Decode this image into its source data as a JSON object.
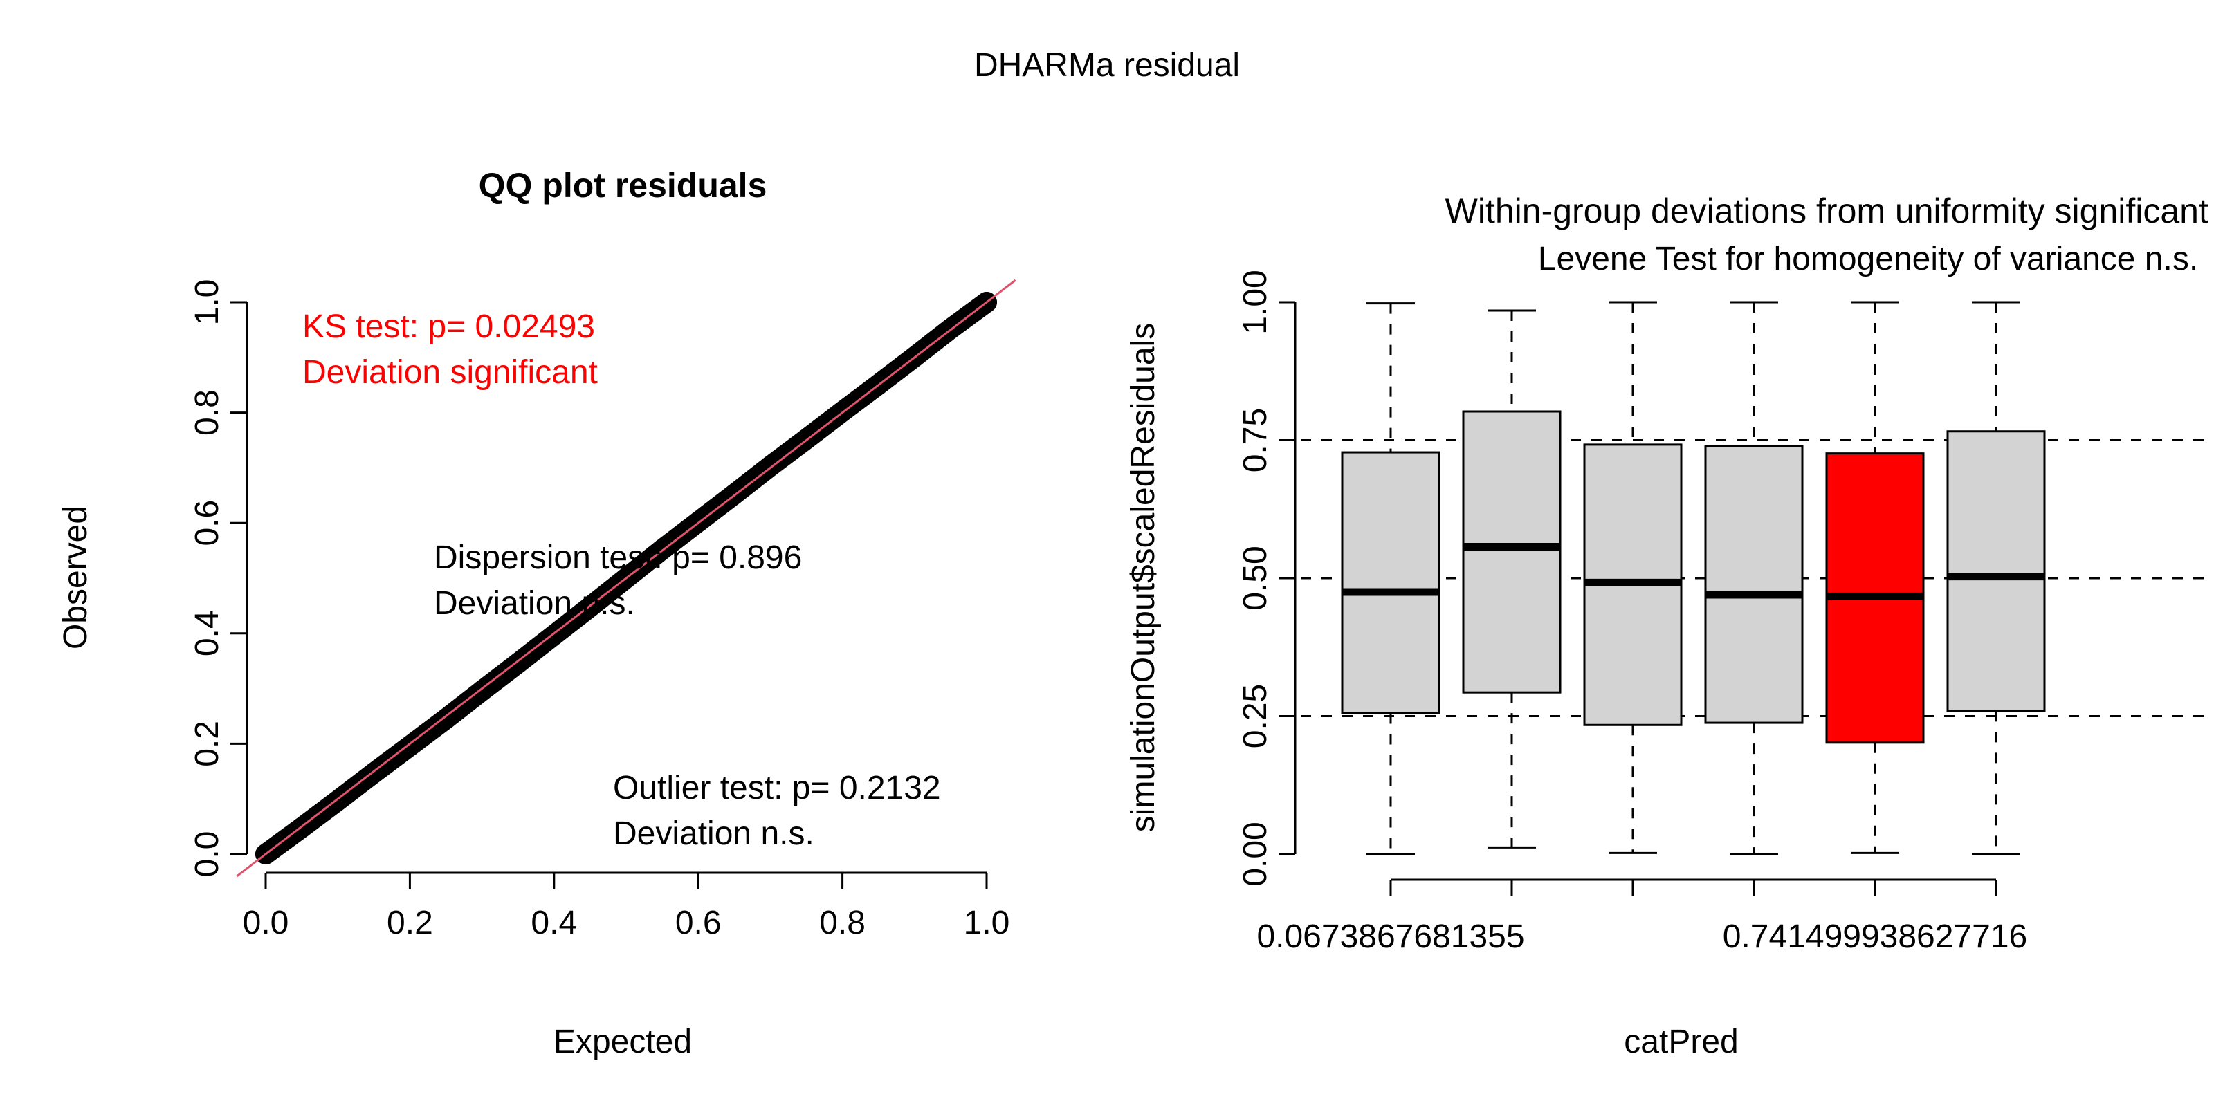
{
  "figure": {
    "main_title": "DHARMa residual"
  },
  "colors": {
    "ink": "#000000",
    "significant": "#ff0000",
    "qq_line": "#df536b",
    "box_fill": "#d3d3d3",
    "box_fill_significant": "#ff0000"
  },
  "chart_data": [
    {
      "type": "scatter",
      "title": "QQ plot residuals",
      "xlabel": "Expected",
      "ylabel": "Observed",
      "xlim": [
        0,
        1
      ],
      "ylim": [
        0,
        1
      ],
      "xticks": [
        0.0,
        0.2,
        0.4,
        0.6,
        0.8,
        1.0
      ],
      "yticks": [
        0.0,
        0.2,
        0.4,
        0.6,
        0.8,
        1.0
      ],
      "xtick_labels": [
        "0.0",
        "0.2",
        "0.4",
        "0.6",
        "0.8",
        "1.0"
      ],
      "ytick_labels": [
        "0.0",
        "0.2",
        "0.4",
        "0.6",
        "0.8",
        "1.0"
      ],
      "reference_line": {
        "slope": 1,
        "intercept": 0
      },
      "points": {
        "x": [
          0.0,
          0.05,
          0.1,
          0.15,
          0.2,
          0.25,
          0.3,
          0.35,
          0.4,
          0.45,
          0.5,
          0.55,
          0.6,
          0.65,
          0.7,
          0.75,
          0.8,
          0.85,
          0.9,
          0.95,
          1.0
        ],
        "y": [
          0.0,
          0.048,
          0.097,
          0.147,
          0.196,
          0.245,
          0.296,
          0.346,
          0.397,
          0.448,
          0.5,
          0.552,
          0.602,
          0.652,
          0.703,
          0.752,
          0.802,
          0.851,
          0.901,
          0.952,
          1.0
        ]
      },
      "annotations": [
        {
          "id": "ks",
          "lines": [
            "KS test: p= 0.02493",
            "Deviation  significant"
          ],
          "significant": true
        },
        {
          "id": "dispersion",
          "lines": [
            "Dispersion test: p= 0.896",
            "Deviation n.s."
          ],
          "significant": false
        },
        {
          "id": "outlier",
          "lines": [
            "Outlier test: p= 0.2132",
            "Deviation  n.s."
          ],
          "significant": false
        }
      ]
    },
    {
      "type": "box",
      "title": "Within-group deviations from uniformity significant (red)",
      "subtitle": "Levene Test for homogeneity of variance n.s.",
      "xlabel": "catPred",
      "ylabel": "simulationOutput$scaledResiduals",
      "ylim": [
        0,
        1
      ],
      "yticks": [
        0.0,
        0.25,
        0.5,
        0.75,
        1.0
      ],
      "ytick_labels": [
        "0.00",
        "0.25",
        "0.50",
        "0.75",
        "1.00"
      ],
      "reference_lines": [
        0.25,
        0.5,
        0.75
      ],
      "category_labels": [
        {
          "index": 0,
          "text": "0.0673867681355"
        },
        {
          "index": 4,
          "text": "0.741499938627716"
        }
      ],
      "boxes": [
        {
          "min": 0.0,
          "q1": 0.255,
          "median": 0.475,
          "q3": 0.728,
          "max": 0.998,
          "significant": false
        },
        {
          "min": 0.012,
          "q1": 0.293,
          "median": 0.557,
          "q3": 0.802,
          "max": 0.985,
          "significant": false
        },
        {
          "min": 0.002,
          "q1": 0.234,
          "median": 0.492,
          "q3": 0.742,
          "max": 1.0,
          "significant": false
        },
        {
          "min": 0.0,
          "q1": 0.238,
          "median": 0.47,
          "q3": 0.739,
          "max": 1.0,
          "significant": false
        },
        {
          "min": 0.002,
          "q1": 0.202,
          "median": 0.467,
          "q3": 0.726,
          "max": 1.0,
          "significant": true
        },
        {
          "min": 0.0,
          "q1": 0.259,
          "median": 0.503,
          "q3": 0.766,
          "max": 1.0,
          "significant": false
        }
      ]
    }
  ]
}
